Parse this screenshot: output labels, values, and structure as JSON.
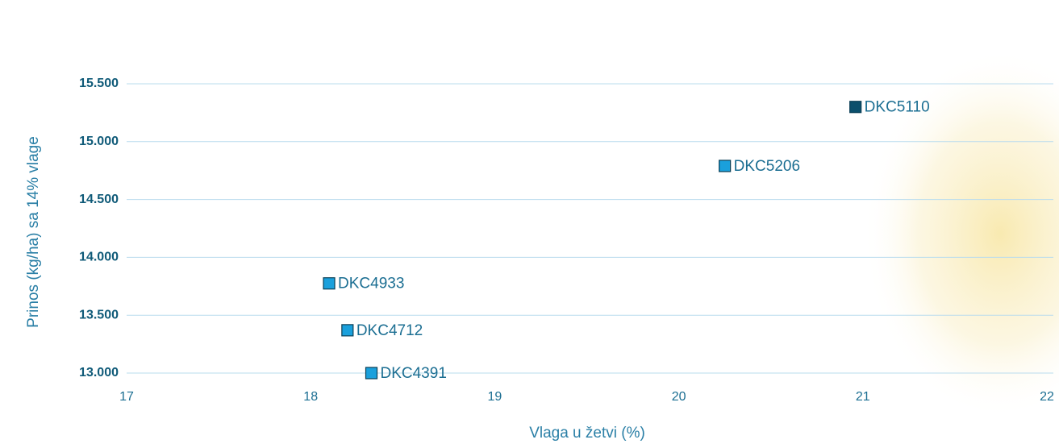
{
  "chart_data": {
    "type": "scatter",
    "x_label": "Vlaga u žetvi (%)",
    "y_label": "Prinos (kg/ha) sa 14% vlage",
    "xlim": [
      17,
      22
    ],
    "xticks": [
      17,
      18,
      19,
      20,
      21,
      22
    ],
    "ylim": [
      13000,
      15500
    ],
    "yticks": [
      {
        "value": 13000,
        "label": "13.000"
      },
      {
        "value": 13500,
        "label": "13.500"
      },
      {
        "value": 14000,
        "label": "14.000"
      },
      {
        "value": 14500,
        "label": "14.500"
      },
      {
        "value": 15000,
        "label": "15.000"
      },
      {
        "value": 15500,
        "label": "15.500"
      }
    ],
    "grid": true,
    "points": [
      {
        "label": "DKC5110",
        "x": 20.96,
        "y": 15300,
        "color": "#0b4f6c"
      },
      {
        "label": "DKC5206",
        "x": 20.25,
        "y": 14790,
        "color": "#1aa0dc"
      },
      {
        "label": "DKC4933",
        "x": 18.1,
        "y": 13775,
        "color": "#1aa0dc"
      },
      {
        "label": "DKC4712",
        "x": 18.2,
        "y": 13370,
        "color": "#1aa0dc"
      },
      {
        "label": "DKC4391",
        "x": 18.33,
        "y": 13000,
        "color": "#1aa0dc"
      }
    ]
  }
}
